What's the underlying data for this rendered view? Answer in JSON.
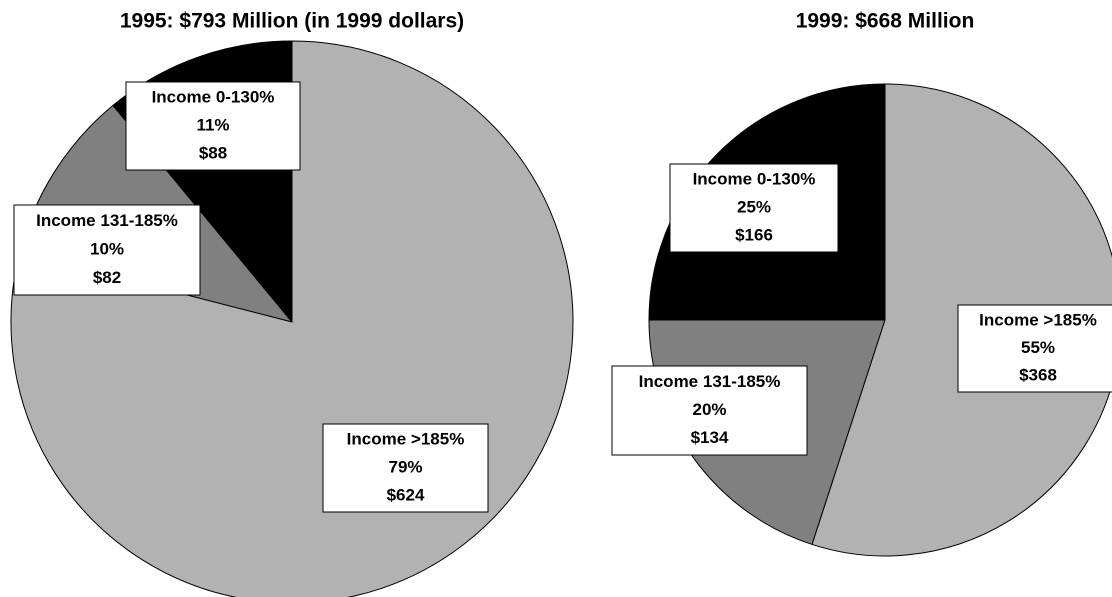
{
  "chart_data": [
    {
      "type": "pie",
      "title": "1995: $793 Million (in 1999 dollars)",
      "categories": [
        "Income 0-130%",
        "Income 131-185%",
        "Income >185%"
      ],
      "values": [
        11,
        10,
        79
      ],
      "value_labels": [
        "11%",
        "10%",
        "79%"
      ],
      "amounts": [
        88,
        82,
        624
      ],
      "amount_labels": [
        "$88",
        "$82",
        "$624"
      ],
      "colors": [
        "#000000",
        "#808080",
        "#b2b2b2"
      ]
    },
    {
      "type": "pie",
      "title": "1999:  $668 Million",
      "categories": [
        "Income 0-130%",
        "Income 131-185%",
        "Income >185%"
      ],
      "values": [
        25,
        20,
        55
      ],
      "value_labels": [
        "25%",
        "20%",
        "55%"
      ],
      "amounts": [
        166,
        134,
        368
      ],
      "amount_labels": [
        "$166",
        "$134",
        "$368"
      ],
      "colors": [
        "#000000",
        "#808080",
        "#b2b2b2"
      ]
    }
  ]
}
